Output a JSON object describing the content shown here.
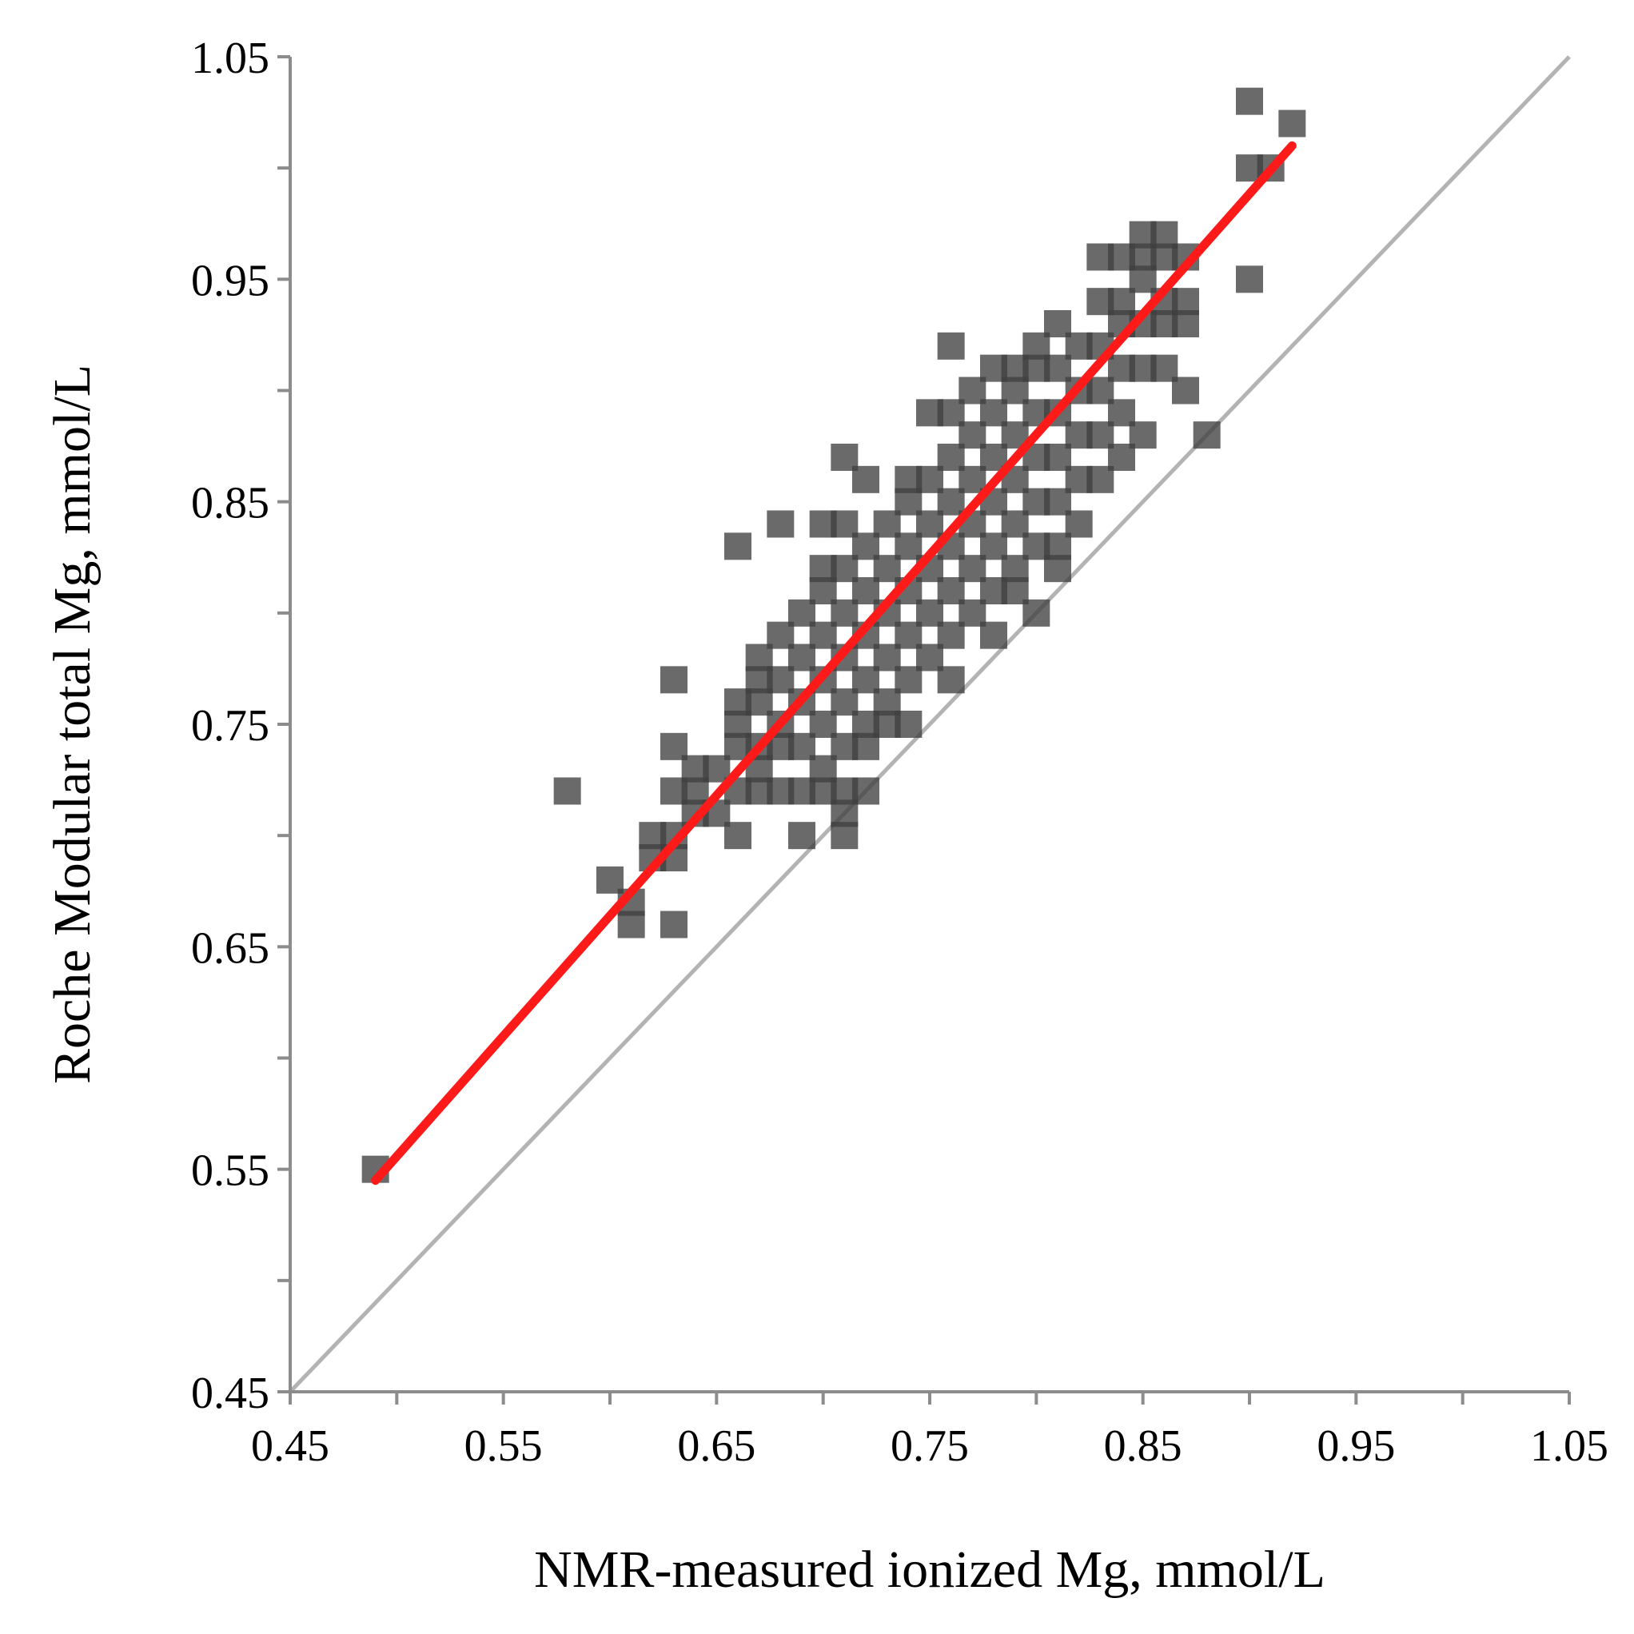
{
  "chart_data": {
    "type": "scatter",
    "title": "",
    "xlabel": "NMR-measured ionized Mg, mmol/L",
    "ylabel": "Roche Modular total Mg, mmol/L",
    "xlim": [
      0.45,
      1.05
    ],
    "ylim": [
      0.45,
      1.05
    ],
    "x_major_ticks": [
      0.45,
      0.55,
      0.65,
      0.75,
      0.85,
      0.95,
      1.05
    ],
    "x_minor_ticks": [
      0.5,
      0.6,
      0.7,
      0.8,
      0.9,
      1.0
    ],
    "y_major_ticks": [
      0.45,
      0.55,
      0.65,
      0.75,
      0.85,
      0.95,
      1.05
    ],
    "y_minor_ticks": [
      0.5,
      0.6,
      0.7,
      0.8,
      0.9,
      1.0
    ],
    "x_tick_labels": [
      "0.45",
      "0.55",
      "0.65",
      "0.75",
      "0.85",
      "0.95",
      "1.05"
    ],
    "y_tick_labels": [
      "0.45",
      "0.55",
      "0.65",
      "0.75",
      "0.85",
      "0.95",
      "1.05"
    ],
    "grid": false,
    "legend": "none",
    "colors": {
      "points": "#404040",
      "regression": "#ff1a1a",
      "identity": "#b3b3b3",
      "axis": "#8c8c8c"
    },
    "series": [
      {
        "name": "samples",
        "marker": "square",
        "points": [
          [
            0.49,
            0.55
          ],
          [
            0.58,
            0.72
          ],
          [
            0.6,
            0.68
          ],
          [
            0.61,
            0.67
          ],
          [
            0.61,
            0.66
          ],
          [
            0.62,
            0.7
          ],
          [
            0.62,
            0.69
          ],
          [
            0.63,
            0.66
          ],
          [
            0.63,
            0.77
          ],
          [
            0.63,
            0.74
          ],
          [
            0.63,
            0.72
          ],
          [
            0.63,
            0.7
          ],
          [
            0.63,
            0.69
          ],
          [
            0.64,
            0.71
          ],
          [
            0.64,
            0.72
          ],
          [
            0.64,
            0.73
          ],
          [
            0.65,
            0.71
          ],
          [
            0.65,
            0.73
          ],
          [
            0.66,
            0.7
          ],
          [
            0.66,
            0.72
          ],
          [
            0.66,
            0.74
          ],
          [
            0.66,
            0.75
          ],
          [
            0.66,
            0.76
          ],
          [
            0.66,
            0.83
          ],
          [
            0.67,
            0.72
          ],
          [
            0.67,
            0.73
          ],
          [
            0.67,
            0.74
          ],
          [
            0.67,
            0.76
          ],
          [
            0.67,
            0.77
          ],
          [
            0.67,
            0.78
          ],
          [
            0.68,
            0.72
          ],
          [
            0.68,
            0.74
          ],
          [
            0.68,
            0.75
          ],
          [
            0.68,
            0.77
          ],
          [
            0.68,
            0.79
          ],
          [
            0.68,
            0.84
          ],
          [
            0.69,
            0.7
          ],
          [
            0.69,
            0.72
          ],
          [
            0.69,
            0.74
          ],
          [
            0.69,
            0.76
          ],
          [
            0.69,
            0.78
          ],
          [
            0.69,
            0.8
          ],
          [
            0.7,
            0.72
          ],
          [
            0.7,
            0.73
          ],
          [
            0.7,
            0.75
          ],
          [
            0.7,
            0.77
          ],
          [
            0.7,
            0.79
          ],
          [
            0.7,
            0.81
          ],
          [
            0.7,
            0.82
          ],
          [
            0.7,
            0.84
          ],
          [
            0.71,
            0.7
          ],
          [
            0.71,
            0.71
          ],
          [
            0.71,
            0.72
          ],
          [
            0.71,
            0.74
          ],
          [
            0.71,
            0.76
          ],
          [
            0.71,
            0.78
          ],
          [
            0.71,
            0.8
          ],
          [
            0.71,
            0.82
          ],
          [
            0.71,
            0.84
          ],
          [
            0.71,
            0.87
          ],
          [
            0.72,
            0.72
          ],
          [
            0.72,
            0.74
          ],
          [
            0.72,
            0.75
          ],
          [
            0.72,
            0.77
          ],
          [
            0.72,
            0.79
          ],
          [
            0.72,
            0.81
          ],
          [
            0.72,
            0.83
          ],
          [
            0.72,
            0.86
          ],
          [
            0.73,
            0.75
          ],
          [
            0.73,
            0.76
          ],
          [
            0.73,
            0.78
          ],
          [
            0.73,
            0.8
          ],
          [
            0.73,
            0.82
          ],
          [
            0.73,
            0.84
          ],
          [
            0.74,
            0.75
          ],
          [
            0.74,
            0.77
          ],
          [
            0.74,
            0.79
          ],
          [
            0.74,
            0.81
          ],
          [
            0.74,
            0.83
          ],
          [
            0.74,
            0.85
          ],
          [
            0.74,
            0.86
          ],
          [
            0.75,
            0.78
          ],
          [
            0.75,
            0.8
          ],
          [
            0.75,
            0.82
          ],
          [
            0.75,
            0.84
          ],
          [
            0.75,
            0.86
          ],
          [
            0.75,
            0.89
          ],
          [
            0.76,
            0.77
          ],
          [
            0.76,
            0.79
          ],
          [
            0.76,
            0.81
          ],
          [
            0.76,
            0.83
          ],
          [
            0.76,
            0.85
          ],
          [
            0.76,
            0.87
          ],
          [
            0.76,
            0.89
          ],
          [
            0.76,
            0.92
          ],
          [
            0.77,
            0.8
          ],
          [
            0.77,
            0.82
          ],
          [
            0.77,
            0.84
          ],
          [
            0.77,
            0.86
          ],
          [
            0.77,
            0.88
          ],
          [
            0.77,
            0.9
          ],
          [
            0.78,
            0.79
          ],
          [
            0.78,
            0.81
          ],
          [
            0.78,
            0.83
          ],
          [
            0.78,
            0.85
          ],
          [
            0.78,
            0.87
          ],
          [
            0.78,
            0.89
          ],
          [
            0.78,
            0.91
          ],
          [
            0.79,
            0.81
          ],
          [
            0.79,
            0.82
          ],
          [
            0.79,
            0.84
          ],
          [
            0.79,
            0.86
          ],
          [
            0.79,
            0.88
          ],
          [
            0.79,
            0.9
          ],
          [
            0.79,
            0.91
          ],
          [
            0.8,
            0.8
          ],
          [
            0.8,
            0.83
          ],
          [
            0.8,
            0.85
          ],
          [
            0.8,
            0.87
          ],
          [
            0.8,
            0.89
          ],
          [
            0.8,
            0.91
          ],
          [
            0.8,
            0.92
          ],
          [
            0.81,
            0.82
          ],
          [
            0.81,
            0.83
          ],
          [
            0.81,
            0.85
          ],
          [
            0.81,
            0.87
          ],
          [
            0.81,
            0.89
          ],
          [
            0.81,
            0.91
          ],
          [
            0.81,
            0.93
          ],
          [
            0.82,
            0.84
          ],
          [
            0.82,
            0.86
          ],
          [
            0.82,
            0.88
          ],
          [
            0.82,
            0.9
          ],
          [
            0.82,
            0.92
          ],
          [
            0.83,
            0.86
          ],
          [
            0.83,
            0.88
          ],
          [
            0.83,
            0.9
          ],
          [
            0.83,
            0.92
          ],
          [
            0.83,
            0.94
          ],
          [
            0.83,
            0.96
          ],
          [
            0.84,
            0.87
          ],
          [
            0.84,
            0.89
          ],
          [
            0.84,
            0.91
          ],
          [
            0.84,
            0.93
          ],
          [
            0.84,
            0.94
          ],
          [
            0.84,
            0.96
          ],
          [
            0.85,
            0.88
          ],
          [
            0.85,
            0.91
          ],
          [
            0.85,
            0.93
          ],
          [
            0.85,
            0.95
          ],
          [
            0.85,
            0.96
          ],
          [
            0.85,
            0.97
          ],
          [
            0.86,
            0.91
          ],
          [
            0.86,
            0.93
          ],
          [
            0.86,
            0.94
          ],
          [
            0.86,
            0.96
          ],
          [
            0.86,
            0.97
          ],
          [
            0.87,
            0.9
          ],
          [
            0.87,
            0.93
          ],
          [
            0.87,
            0.94
          ],
          [
            0.87,
            0.96
          ],
          [
            0.88,
            0.88
          ],
          [
            0.9,
            0.95
          ],
          [
            0.9,
            1.0
          ],
          [
            0.9,
            1.03
          ],
          [
            0.91,
            1.0
          ],
          [
            0.92,
            1.02
          ]
        ]
      }
    ],
    "regression_line": {
      "x": [
        0.49,
        0.92
      ],
      "y": [
        0.545,
        1.01
      ]
    },
    "identity_line": {
      "x": [
        0.45,
        1.05
      ],
      "y": [
        0.45,
        1.05
      ]
    }
  }
}
